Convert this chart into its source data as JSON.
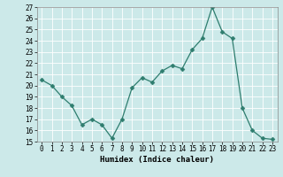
{
  "x": [
    0,
    1,
    2,
    3,
    4,
    5,
    6,
    7,
    8,
    9,
    10,
    11,
    12,
    13,
    14,
    15,
    16,
    17,
    18,
    19,
    20,
    21,
    22,
    23
  ],
  "y": [
    20.5,
    20.0,
    19.0,
    18.2,
    16.5,
    17.0,
    16.5,
    15.3,
    17.0,
    19.8,
    20.7,
    20.3,
    21.3,
    21.8,
    21.5,
    23.2,
    24.2,
    27.0,
    24.8,
    24.2,
    18.0,
    16.0,
    15.3,
    15.2
  ],
  "xlabel": "Humidex (Indice chaleur)",
  "ylim": [
    15,
    27
  ],
  "xlim_min": -0.5,
  "xlim_max": 23.5,
  "yticks": [
    15,
    16,
    17,
    18,
    19,
    20,
    21,
    22,
    23,
    24,
    25,
    26,
    27
  ],
  "xticks": [
    0,
    1,
    2,
    3,
    4,
    5,
    6,
    7,
    8,
    9,
    10,
    11,
    12,
    13,
    14,
    15,
    16,
    17,
    18,
    19,
    20,
    21,
    22,
    23
  ],
  "line_color": "#2e7d6e",
  "marker": "D",
  "marker_size": 2.5,
  "bg_color": "#cce9e9",
  "grid_color": "#ffffff",
  "label_fontsize": 6.5,
  "tick_fontsize": 5.5
}
